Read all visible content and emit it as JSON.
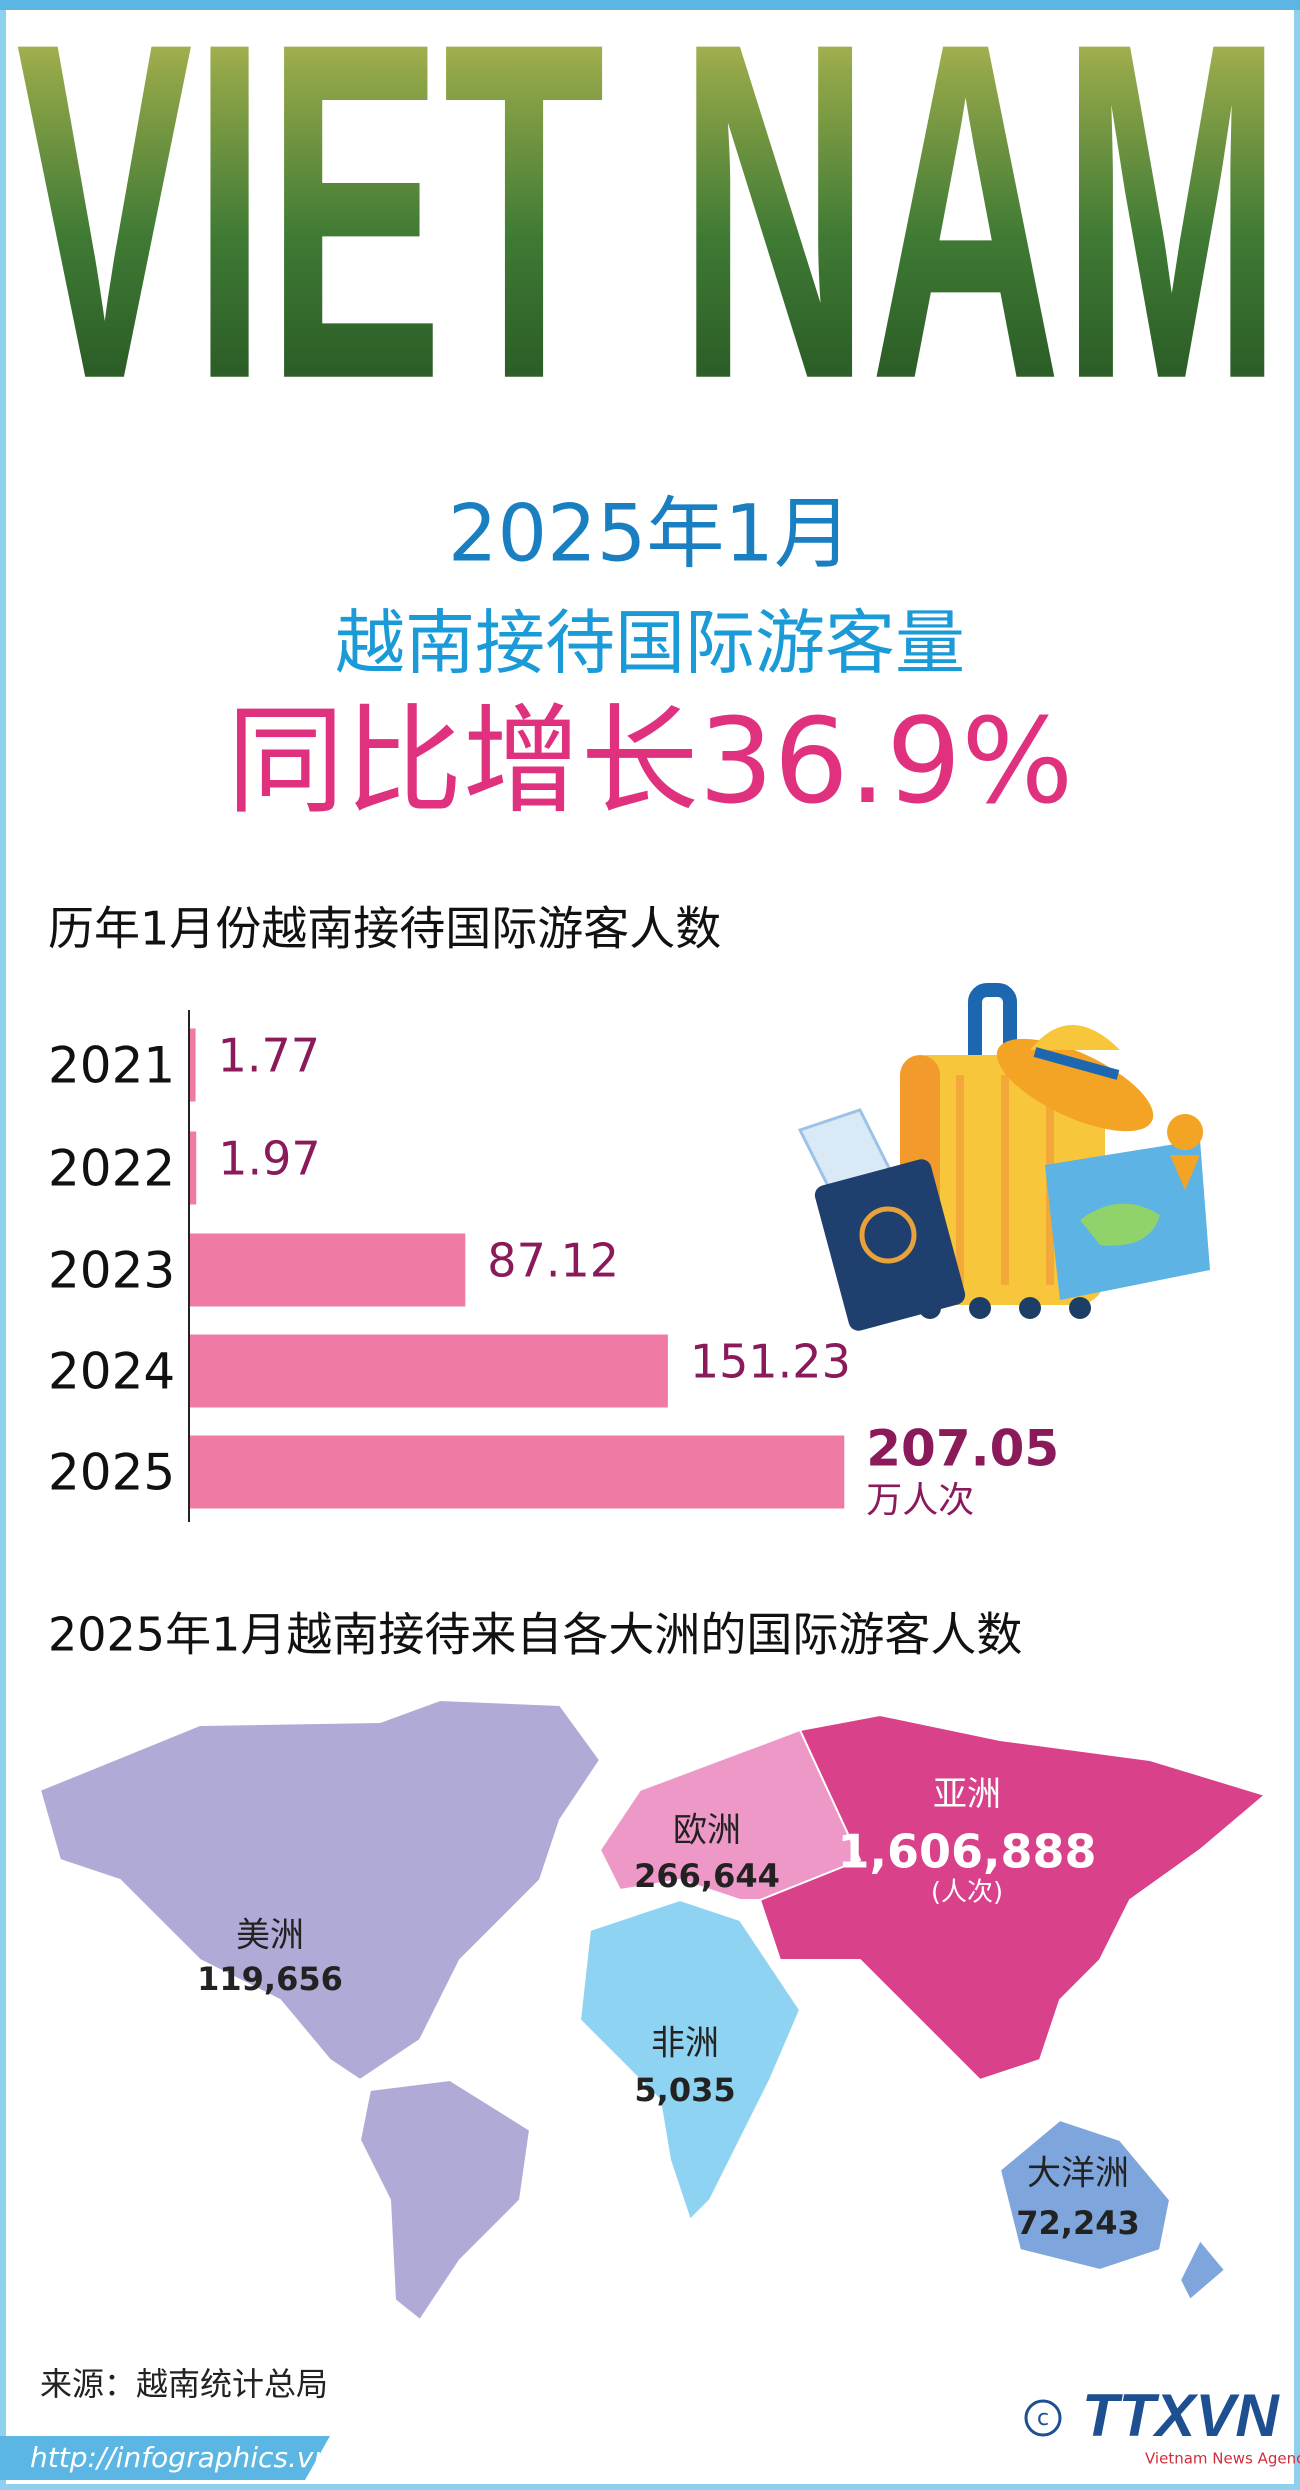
{
  "banner": "VIET NAM",
  "headline": {
    "line1": "2025年1月",
    "line2": "越南接待国际游客量",
    "line3": "同比增长36.9%"
  },
  "chart_data": {
    "type": "bar",
    "orientation": "horizontal",
    "title": "历年1月份越南接待国际游客人数",
    "categories": [
      "2021",
      "2022",
      "2023",
      "2024",
      "2025"
    ],
    "values": [
      1.77,
      1.97,
      87.12,
      151.23,
      207.05
    ],
    "unit": "万人次",
    "color": "#ee7aa5"
  },
  "map": {
    "title": "2025年1月越南接待来自各大洲的国际游客人数",
    "unit_note": "(人次)",
    "regions": [
      {
        "name": "美洲",
        "value": 119656,
        "value_label": "119,656",
        "color": "#b0aad6"
      },
      {
        "name": "欧洲",
        "value": 266644,
        "value_label": "266,644",
        "color": "#ee98c8"
      },
      {
        "name": "亚洲",
        "value": 1606888,
        "value_label": "1,606,888",
        "color": "#d9418a"
      },
      {
        "name": "非洲",
        "value": 5035,
        "value_label": "5,035",
        "color": "#8fd3f2"
      },
      {
        "name": "大洋洲",
        "value": 72243,
        "value_label": "72,243",
        "color": "#7fa6dc"
      }
    ]
  },
  "source": "来源：越南统计总局",
  "url": "http://infographics.vn",
  "logo": "TTXVN",
  "logo_sub": "Vietnam News Agency"
}
